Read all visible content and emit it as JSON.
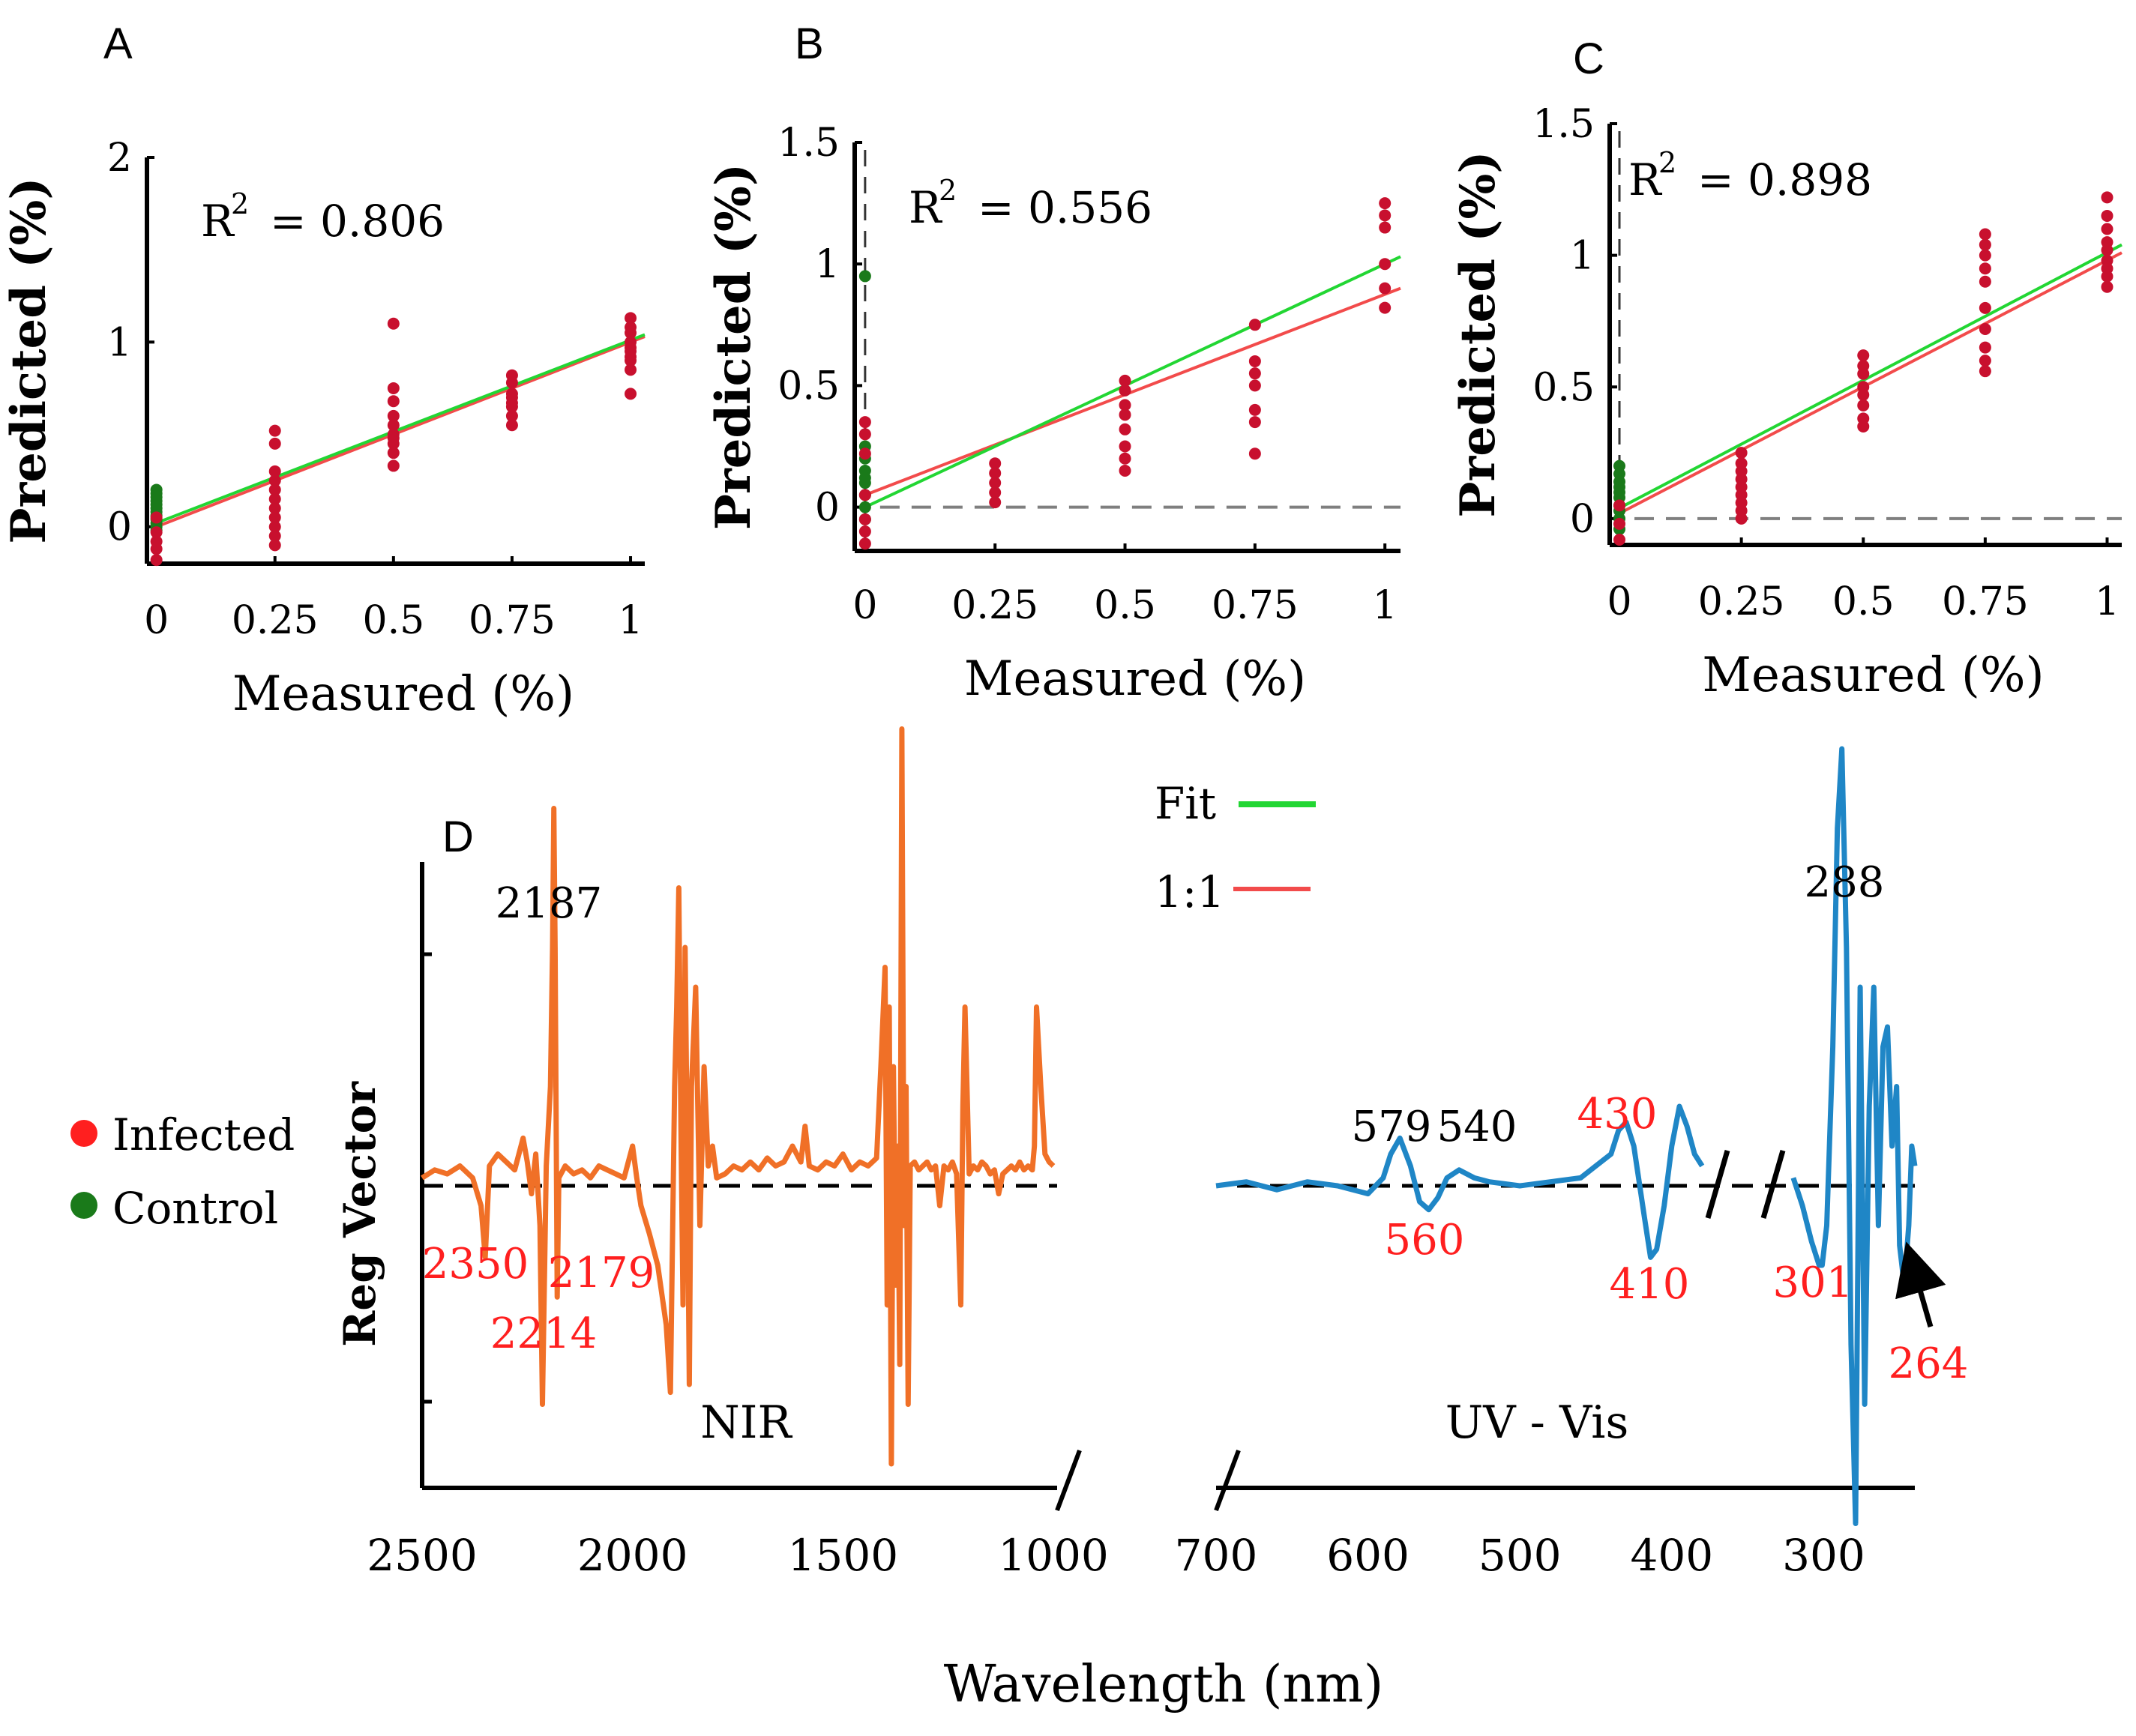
{
  "colors": {
    "infected": "#c8102e",
    "control": "#1a7a1a",
    "fit": "#22d633",
    "one_to_one": "#f24b4b",
    "nir": "#f07027",
    "uvvis": "#1f86c6",
    "axis": "#000000",
    "zero_line": "#7f7f7f",
    "red_label": "#ff1f1f"
  },
  "legend": {
    "infected": "Infected",
    "control": "Control",
    "fit": "Fit",
    "one_to_one": "1:1"
  },
  "chart_data": [
    {
      "panel": "A",
      "type": "scatter",
      "xlabel": "Measured (%)",
      "ylabel": "Predicted (%)",
      "r2_prefix": "R",
      "r2_sup": "2",
      "r2_value": "= 0.806",
      "xlim": [
        -0.02,
        1.03
      ],
      "ylim": [
        -0.2,
        2.0
      ],
      "xticks": [
        0,
        0.25,
        0.5,
        0.75,
        1
      ],
      "xtick_labels": [
        "0",
        "0.25",
        "0.5",
        "0.75",
        "1"
      ],
      "yticks": [
        0,
        1,
        2
      ],
      "ytick_labels": [
        "0",
        "1",
        "2"
      ],
      "show_zero_line": false,
      "show_x0_line": false,
      "fit_line": [
        [
          0,
          0.02
        ],
        [
          1.03,
          1.04
        ]
      ],
      "one_to_one": [
        [
          0,
          0
        ],
        [
          1.03,
          1.03
        ]
      ],
      "series": [
        {
          "name": "Control",
          "x": [
            0,
            0,
            0,
            0,
            0,
            0,
            0,
            0,
            0,
            0,
            0,
            0
          ],
          "y": [
            0.2,
            0.18,
            0.16,
            0.14,
            0.12,
            0.1,
            0.08,
            0.06,
            0.04,
            0.02,
            0.0,
            -0.02
          ]
        },
        {
          "name": "Infected",
          "x": [
            0,
            0,
            0,
            0,
            0,
            0.25,
            0.25,
            0.25,
            0.25,
            0.25,
            0.25,
            0.25,
            0.25,
            0.25,
            0.25,
            0.25,
            0.5,
            0.5,
            0.5,
            0.5,
            0.5,
            0.5,
            0.5,
            0.5,
            0.5,
            0.5,
            0.75,
            0.75,
            0.75,
            0.75,
            0.75,
            0.75,
            0.75,
            0.75,
            1,
            1,
            1,
            1,
            1,
            1,
            1,
            1,
            1,
            1
          ],
          "y": [
            0.05,
            -0.03,
            -0.08,
            -0.12,
            -0.18,
            0.52,
            0.45,
            0.3,
            0.25,
            0.2,
            0.15,
            0.1,
            0.05,
            0.0,
            -0.05,
            -0.1,
            1.1,
            0.75,
            0.68,
            0.6,
            0.55,
            0.5,
            0.48,
            0.45,
            0.4,
            0.33,
            0.82,
            0.78,
            0.72,
            0.7,
            0.67,
            0.65,
            0.6,
            0.55,
            1.13,
            1.08,
            1.05,
            1.0,
            0.97,
            0.95,
            0.92,
            0.9,
            0.85,
            0.72
          ]
        }
      ]
    },
    {
      "panel": "B",
      "type": "scatter",
      "xlabel": "Measured (%)",
      "ylabel": "Predicted (%)",
      "r2_prefix": "R",
      "r2_sup": "2",
      "r2_value": "= 0.556",
      "xlim": [
        -0.02,
        1.03
      ],
      "ylim": [
        -0.18,
        1.5
      ],
      "xticks": [
        0,
        0.25,
        0.5,
        0.75,
        1
      ],
      "xtick_labels": [
        "0",
        "0.25",
        "0.5",
        "0.75",
        "1"
      ],
      "yticks": [
        0,
        0.5,
        1,
        1.5
      ],
      "ytick_labels": [
        "0",
        "0.5",
        "1",
        "1.5"
      ],
      "show_zero_line": true,
      "show_x0_line": true,
      "fit_line": [
        [
          0,
          0.0
        ],
        [
          1.03,
          1.03
        ]
      ],
      "one_to_one": [
        [
          0,
          0.05
        ],
        [
          1.03,
          0.9
        ]
      ],
      "series": [
        {
          "name": "Control",
          "x": [
            0,
            0,
            0,
            0,
            0,
            0,
            0,
            0,
            0
          ],
          "y": [
            0.95,
            0.25,
            0.2,
            0.15,
            0.1,
            0.05,
            0.0,
            -0.05,
            0.12
          ]
        },
        {
          "name": "Infected",
          "x": [
            0,
            0,
            0,
            0,
            0,
            0,
            0,
            0.25,
            0.25,
            0.25,
            0.25,
            0.25,
            0.5,
            0.5,
            0.5,
            0.5,
            0.5,
            0.5,
            0.5,
            0.5,
            0.75,
            0.75,
            0.75,
            0.75,
            0.75,
            0.75,
            0.75,
            1,
            1,
            1,
            1,
            1,
            1
          ],
          "y": [
            0.35,
            0.3,
            0.22,
            0.05,
            -0.05,
            -0.1,
            -0.15,
            0.18,
            0.14,
            0.1,
            0.06,
            0.02,
            0.52,
            0.48,
            0.42,
            0.38,
            0.32,
            0.25,
            0.2,
            0.15,
            0.75,
            0.6,
            0.55,
            0.5,
            0.4,
            0.35,
            0.22,
            1.25,
            1.2,
            1.15,
            1.0,
            0.9,
            0.82
          ]
        }
      ]
    },
    {
      "panel": "C",
      "type": "scatter",
      "xlabel": "Measured (%)",
      "ylabel": "Predicted (%)",
      "r2_prefix": "R",
      "r2_sup": "2",
      "r2_value": "= 0.898",
      "xlim": [
        -0.02,
        1.03
      ],
      "ylim": [
        -0.1,
        1.5
      ],
      "xticks": [
        0,
        0.25,
        0.5,
        0.75,
        1
      ],
      "xtick_labels": [
        "0",
        "0.25",
        "0.5",
        "0.75",
        "1"
      ],
      "yticks": [
        0,
        0.5,
        1,
        1.5
      ],
      "ytick_labels": [
        "0",
        "0.5",
        "1",
        "1.5"
      ],
      "show_zero_line": true,
      "show_x0_line": true,
      "fit_line": [
        [
          0,
          0.04
        ],
        [
          1.03,
          1.04
        ]
      ],
      "one_to_one": [
        [
          0,
          0.02
        ],
        [
          1.03,
          1.01
        ]
      ],
      "series": [
        {
          "name": "Control",
          "x": [
            0,
            0,
            0,
            0,
            0,
            0,
            0,
            0,
            0,
            0
          ],
          "y": [
            0.2,
            0.17,
            0.14,
            0.12,
            0.1,
            0.08,
            0.05,
            0.03,
            0.0,
            -0.04
          ]
        },
        {
          "name": "Infected",
          "x": [
            0,
            0,
            0,
            0.25,
            0.25,
            0.25,
            0.25,
            0.25,
            0.25,
            0.25,
            0.25,
            0.25,
            0.5,
            0.5,
            0.5,
            0.5,
            0.5,
            0.5,
            0.5,
            0.5,
            0.75,
            0.75,
            0.75,
            0.75,
            0.75,
            0.75,
            0.75,
            0.75,
            0.75,
            0.75,
            1,
            1,
            1,
            1,
            1,
            1,
            1,
            1,
            1
          ],
          "y": [
            0.05,
            -0.02,
            -0.08,
            0.25,
            0.21,
            0.18,
            0.15,
            0.12,
            0.09,
            0.06,
            0.03,
            0.0,
            0.62,
            0.58,
            0.55,
            0.5,
            0.47,
            0.43,
            0.38,
            0.35,
            1.08,
            1.04,
            1.0,
            0.95,
            0.9,
            0.8,
            0.72,
            0.65,
            0.6,
            0.56,
            1.22,
            1.15,
            1.1,
            1.05,
            1.02,
            0.98,
            0.95,
            0.92,
            0.88
          ]
        }
      ]
    },
    {
      "panel": "D",
      "type": "line",
      "ylabel": "Reg Vector",
      "xlabel": "Wavelength (nm)",
      "segments": [
        {
          "name": "NIR",
          "region_label": "NIR",
          "xlim": [
            2500,
            1000
          ],
          "xticks": [
            2500,
            2000,
            1500,
            1000
          ],
          "xtick_labels": [
            "2500",
            "2000",
            "1500",
            "1000"
          ],
          "x": [
            2500,
            2470,
            2440,
            2410,
            2380,
            2360,
            2350,
            2340,
            2320,
            2300,
            2280,
            2260,
            2250,
            2240,
            2230,
            2220,
            2214,
            2205,
            2195,
            2190,
            2187,
            2184,
            2179,
            2175,
            2160,
            2140,
            2120,
            2100,
            2080,
            2060,
            2040,
            2020,
            2000,
            1990,
            1980,
            1960,
            1940,
            1920,
            1910,
            1900,
            1895,
            1890,
            1885,
            1880,
            1875,
            1870,
            1865,
            1860,
            1850,
            1840,
            1830,
            1820,
            1810,
            1800,
            1780,
            1760,
            1740,
            1720,
            1700,
            1680,
            1660,
            1640,
            1620,
            1600,
            1590,
            1580,
            1560,
            1540,
            1520,
            1500,
            1480,
            1460,
            1440,
            1420,
            1410,
            1400,
            1395,
            1390,
            1385,
            1380,
            1375,
            1370,
            1365,
            1360,
            1355,
            1350,
            1345,
            1340,
            1330,
            1320,
            1310,
            1300,
            1290,
            1280,
            1270,
            1260,
            1250,
            1240,
            1230,
            1220,
            1215,
            1210,
            1200,
            1190,
            1180,
            1170,
            1160,
            1150,
            1140,
            1130,
            1120,
            1110,
            1100,
            1090,
            1080,
            1070,
            1060,
            1050,
            1045,
            1040,
            1030,
            1020,
            1010,
            1000
          ],
          "y": [
            0.02,
            0.04,
            0.03,
            0.05,
            0.02,
            -0.05,
            -0.18,
            0.05,
            0.08,
            0.06,
            0.04,
            0.12,
            0.06,
            -0.02,
            0.08,
            -0.1,
            -0.55,
            0.05,
            0.25,
            0.6,
            0.95,
            0.6,
            -0.28,
            0.02,
            0.05,
            0.03,
            0.04,
            0.02,
            0.05,
            0.04,
            0.03,
            0.02,
            0.1,
            0.02,
            -0.05,
            -0.12,
            -0.2,
            -0.35,
            -0.52,
            0.25,
            0.45,
            0.75,
            0.15,
            -0.3,
            0.6,
            0.1,
            -0.5,
            0.25,
            0.5,
            -0.1,
            0.3,
            0.05,
            0.1,
            0.02,
            0.03,
            0.05,
            0.04,
            0.06,
            0.04,
            0.07,
            0.05,
            0.06,
            0.1,
            0.06,
            0.15,
            0.05,
            0.04,
            0.06,
            0.05,
            0.08,
            0.04,
            0.06,
            0.05,
            0.07,
            0.3,
            0.55,
            -0.3,
            0.45,
            -0.7,
            0.3,
            -0.25,
            0.1,
            -0.45,
            1.15,
            -0.1,
            0.25,
            -0.55,
            0.05,
            0.06,
            0.04,
            0.05,
            0.06,
            0.04,
            0.05,
            -0.05,
            0.05,
            0.04,
            0.06,
            0.03,
            -0.3,
            0.2,
            0.45,
            0.03,
            0.05,
            0.04,
            0.06,
            0.05,
            0.03,
            0.04,
            -0.02,
            0.03,
            0.04,
            0.05,
            0.04,
            0.06,
            0.04,
            0.05,
            0.04,
            0.1,
            0.45,
            0.25,
            0.08,
            0.06,
            0.05
          ]
        },
        {
          "name": "UV-Vis",
          "region_label": "UV - Vis",
          "xlim": [
            700,
            240
          ],
          "xticks": [
            700,
            600,
            500,
            400,
            300
          ],
          "xtick_labels": [
            "700",
            "600",
            "500",
            "400",
            "300"
          ],
          "part1": {
            "x": [
              700,
              680,
              660,
              640,
              620,
              600,
              590,
              585,
              579,
              572,
              566,
              560,
              554,
              548,
              540,
              530,
              520,
              500,
              480,
              460,
              450,
              440,
              435,
              430,
              425,
              418,
              414,
              410,
              405,
              400,
              395,
              390,
              385,
              380
            ],
            "y": [
              0.0,
              0.01,
              -0.01,
              0.01,
              0.0,
              -0.02,
              0.02,
              0.08,
              0.12,
              0.05,
              -0.04,
              -0.06,
              -0.03,
              0.02,
              0.04,
              0.02,
              0.01,
              0.0,
              0.01,
              0.02,
              0.05,
              0.08,
              0.14,
              0.16,
              0.1,
              -0.08,
              -0.18,
              -0.16,
              -0.05,
              0.1,
              0.2,
              0.15,
              0.08,
              0.05
            ]
          },
          "part2": {
            "x": [
              320,
              314,
              308,
              303,
              301,
              298,
              294,
              291,
              288,
              285,
              282,
              279,
              276,
              273,
              270,
              267,
              264,
              261,
              258,
              255,
              252,
              250,
              247,
              244,
              242,
              240
            ],
            "y": [
              0.02,
              -0.05,
              -0.14,
              -0.2,
              -0.2,
              -0.1,
              0.35,
              0.9,
              1.1,
              0.6,
              -0.4,
              -0.85,
              0.5,
              -0.55,
              0.2,
              0.5,
              -0.1,
              0.35,
              0.4,
              0.1,
              0.25,
              -0.15,
              -0.25,
              -0.1,
              0.1,
              0.05
            ]
          }
        }
      ],
      "peak_labels_black": [
        "2187",
        "579",
        "540",
        "288"
      ],
      "peak_labels_red": [
        "2350",
        "2214",
        "2179",
        "560",
        "430",
        "410",
        "301",
        "264"
      ],
      "panel_letter": "D"
    }
  ],
  "panel_letters": [
    "A",
    "B",
    "C",
    "D"
  ]
}
